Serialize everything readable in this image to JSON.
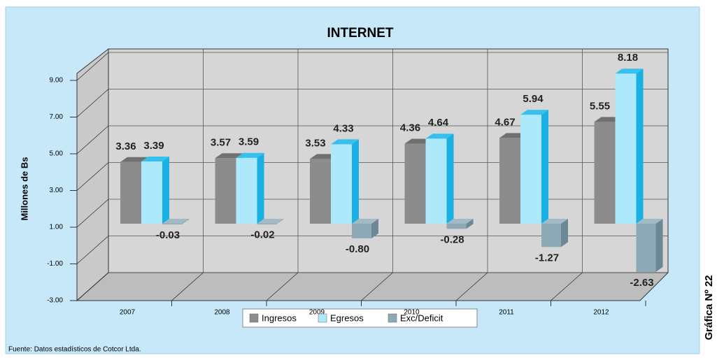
{
  "chart_data": {
    "type": "bar3d",
    "title": "INTERNET",
    "y_label": "Millones de Bs",
    "side_label": "Gráfica Nº 22",
    "source": "Fuente: Datos estadísticos de Cotcor Ltda.",
    "categories": [
      "2007",
      "2008",
      "2009",
      "2010",
      "2011",
      "2012"
    ],
    "series": [
      {
        "name": "Ingresos",
        "color": "#8c8c8c",
        "values": [
          3.36,
          3.57,
          3.53,
          4.36,
          4.67,
          5.55
        ]
      },
      {
        "name": "Egresos",
        "color": "#aee8fb",
        "values": [
          3.39,
          3.59,
          4.33,
          4.64,
          5.94,
          8.18
        ]
      },
      {
        "name": "Exc/Deficit",
        "color": "#8ea9b6",
        "values": [
          -0.03,
          -0.02,
          -0.8,
          -0.28,
          -1.27,
          -2.63
        ],
        "value_labels": [
          "-0.03",
          "-0.02",
          "-0.80",
          "-0.28",
          "-1.27",
          "-2.63"
        ]
      }
    ],
    "ylim": [
      -3,
      9
    ],
    "yticks": [
      {
        "value": 9,
        "label": "9.00"
      },
      {
        "value": 7,
        "label": "7.00"
      },
      {
        "value": 5,
        "label": "5.00"
      },
      {
        "value": 3,
        "label": "3.00"
      },
      {
        "value": 1,
        "label": "1.00"
      },
      {
        "value": -1,
        "label": "-1.00"
      },
      {
        "value": -3,
        "label": "-3.00"
      }
    ],
    "grid": true,
    "legend": "bottom"
  }
}
